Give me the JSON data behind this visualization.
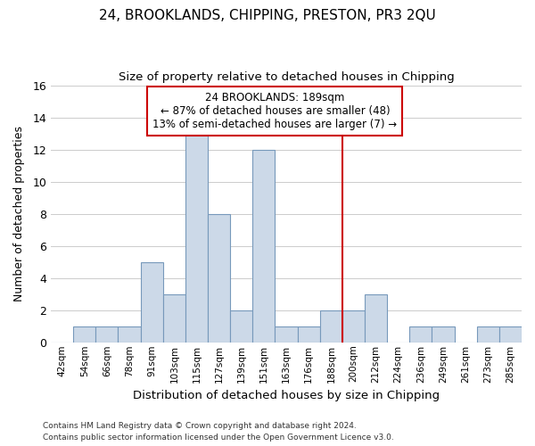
{
  "title": "24, BROOKLANDS, CHIPPING, PRESTON, PR3 2QU",
  "subtitle": "Size of property relative to detached houses in Chipping",
  "xlabel": "Distribution of detached houses by size in Chipping",
  "ylabel": "Number of detached properties",
  "categories": [
    "42sqm",
    "54sqm",
    "66sqm",
    "78sqm",
    "91sqm",
    "103sqm",
    "115sqm",
    "127sqm",
    "139sqm",
    "151sqm",
    "163sqm",
    "176sqm",
    "188sqm",
    "200sqm",
    "212sqm",
    "224sqm",
    "236sqm",
    "249sqm",
    "261sqm",
    "273sqm",
    "285sqm"
  ],
  "values": [
    0,
    1,
    1,
    1,
    5,
    3,
    13,
    8,
    2,
    12,
    1,
    1,
    2,
    2,
    3,
    0,
    1,
    1,
    0,
    1,
    1
  ],
  "bar_color": "#ccd9e8",
  "bar_edge_color": "#7799bb",
  "grid_color": "#cccccc",
  "background_color": "#ffffff",
  "annotation_text": "24 BROOKLANDS: 189sqm\n← 87% of detached houses are smaller (48)\n13% of semi-detached houses are larger (7) →",
  "annotation_box_color": "#ffffff",
  "annotation_box_edge_color": "#cc0000",
  "vline_color": "#cc0000",
  "footer_line1": "Contains HM Land Registry data © Crown copyright and database right 2024.",
  "footer_line2": "Contains public sector information licensed under the Open Government Licence v3.0.",
  "ylim": [
    0,
    16
  ],
  "yticks": [
    0,
    2,
    4,
    6,
    8,
    10,
    12,
    14,
    16
  ]
}
